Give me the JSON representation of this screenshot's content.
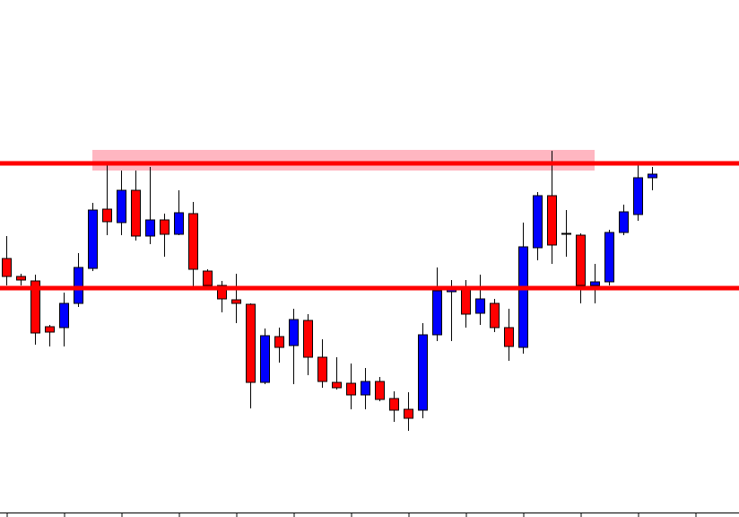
{
  "chart_data": {
    "type": "candlestick",
    "up_color": "#0000ff",
    "down_color": "#ff0000",
    "level_color": "#ff0000",
    "zone_color": "#ffb6c1",
    "ylim": [
      0,
      576
    ],
    "levels": [
      394,
      255
    ],
    "zone": [
      386,
      409
    ],
    "open": [
      288,
      268,
      263,
      212,
      211,
      238,
      277,
      343,
      328,
      364,
      313,
      331,
      315,
      338,
      274,
      258,
      242,
      237,
      150,
      201,
      191,
      219,
      178,
      150,
      149,
      136,
      151,
      132,
      120,
      119,
      203,
      251,
      254,
      227,
      238,
      211,
      189,
      300,
      358,
      315,
      314,
      258,
      262,
      317,
      337,
      378
    ],
    "high": [
      313,
      271,
      270,
      214,
      250,
      294,
      350,
      393,
      386,
      386,
      390,
      338,
      364,
      351,
      276,
      263,
      271,
      238,
      210,
      211,
      232,
      226,
      198,
      178,
      171,
      166,
      156,
      140,
      139,
      216,
      278,
      264,
      264,
      270,
      243,
      232,
      328,
      362,
      408,
      342,
      316,
      282,
      320,
      348,
      392,
      390
    ],
    "low": [
      258,
      258,
      192,
      190,
      190,
      234,
      274,
      314,
      314,
      308,
      304,
      290,
      314,
      257,
      256,
      228,
      216,
      121,
      148,
      172,
      148,
      158,
      144,
      142,
      120,
      120,
      129,
      106,
      96,
      110,
      196,
      196,
      211,
      214,
      206,
      174,
      182,
      286,
      282,
      290,
      238,
      238,
      258,
      314,
      330,
      364
    ],
    "close": [
      268,
      264,
      205,
      206,
      238,
      278,
      342,
      329,
      364,
      313,
      331,
      315,
      339,
      276,
      258,
      243,
      238,
      150,
      202,
      189,
      220,
      178,
      151,
      144,
      136,
      151,
      131,
      119,
      110,
      203,
      252,
      253,
      226,
      243,
      211,
      190,
      301,
      358,
      303,
      316,
      258,
      262,
      317,
      340,
      378,
      382
    ]
  }
}
